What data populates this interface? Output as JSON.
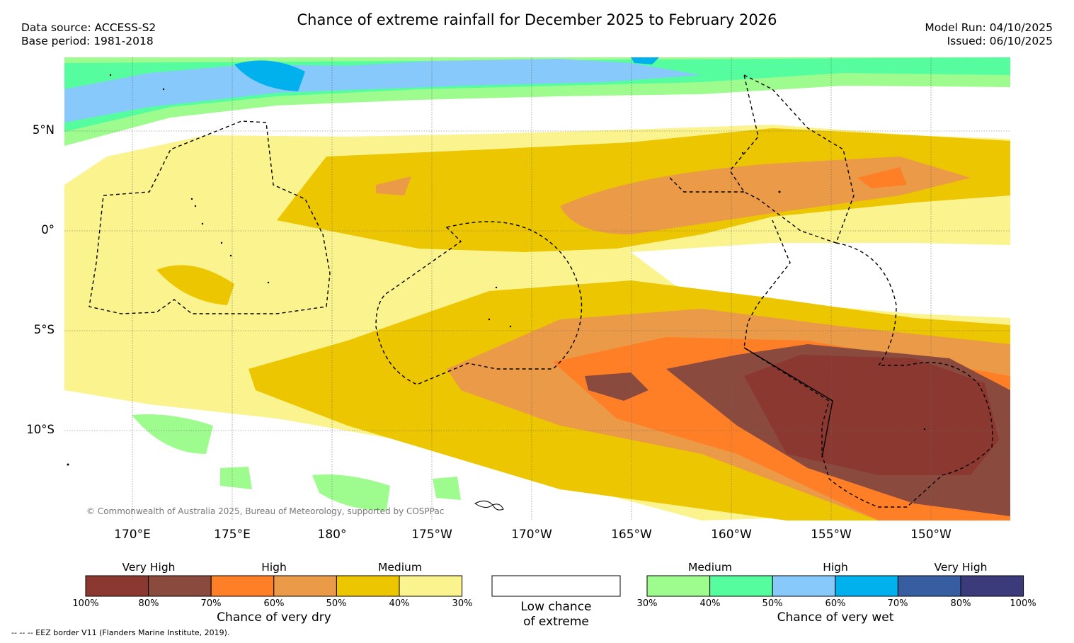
{
  "title": "Chance of extreme rainfall for December 2025 to February 2026",
  "meta": {
    "data_source": "Data source: ACCESS-S2",
    "base_period": "Base period: 1981-2018",
    "model_run": "Model Run: 04/10/2025",
    "issued": "Issued: 06/10/2025"
  },
  "map": {
    "lat_labels": [
      "5°N",
      "0°",
      "5°S",
      "10°S"
    ],
    "lon_labels": [
      "170°E",
      "175°E",
      "180°",
      "175°W",
      "170°W",
      "165°W",
      "160°W",
      "155°W",
      "150°W"
    ],
    "copyright": "© Commonwealth of Australia 2025, Bureau of Meteorology, supported by COSPPac"
  },
  "legend": {
    "dry": {
      "title": "Chance of very dry",
      "groups": [
        "Very High",
        "High",
        "Medium"
      ],
      "ticks": [
        "100%",
        "80%",
        "70%",
        "60%",
        "50%",
        "40%",
        "30%"
      ],
      "colors": [
        "#8b3830",
        "#8b4a3e",
        "#ff7f27",
        "#eb9a47",
        "#ecc600",
        "#fbf38d"
      ]
    },
    "low": {
      "line1": "Low chance",
      "line2": "of extreme",
      "color": "#ffffff"
    },
    "wet": {
      "title": "Chance of very wet",
      "groups": [
        "Medium",
        "High",
        "Very High"
      ],
      "ticks": [
        "30%",
        "40%",
        "50%",
        "60%",
        "70%",
        "80%",
        "100%"
      ],
      "colors": [
        "#9efc8f",
        "#55fd9f",
        "#87c9fb",
        "#00b1ed",
        "#385ea2",
        "#3b3a7a"
      ]
    }
  },
  "footnote": "-- -- -- EEZ border V11 (Flanders Marine Institute, 2019)."
}
